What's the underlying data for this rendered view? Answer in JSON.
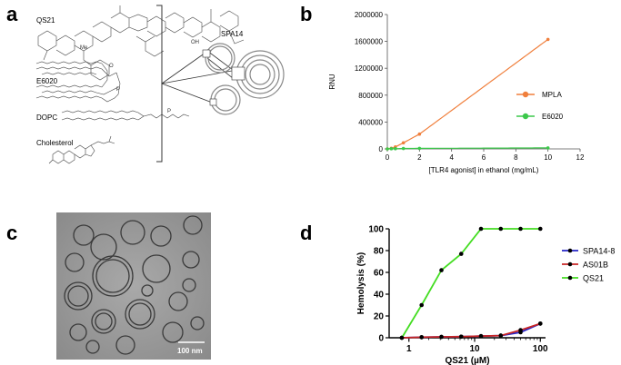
{
  "panels": {
    "a": {
      "letter": "a"
    },
    "b": {
      "letter": "b"
    },
    "c": {
      "letter": "c"
    },
    "d": {
      "letter": "d"
    }
  },
  "panel_a": {
    "labels": {
      "qs21": "QS21",
      "e6020": "E6020",
      "dopc": "DOPC",
      "cholesterol": "Cholesterol",
      "spa14": "SPA14"
    }
  },
  "panel_c": {
    "scale_bar_label": "100 nm"
  },
  "chart_data": [
    {
      "id": "b",
      "type": "line",
      "title": "",
      "xlabel": "[TLR4 agonist] in ethanol (mg/mL)",
      "ylabel": "RNU",
      "xlim": [
        0,
        12
      ],
      "ylim": [
        0,
        2000000
      ],
      "x_ticks": [
        0,
        2,
        4,
        6,
        8,
        10,
        12
      ],
      "y_ticks": [
        0,
        400000,
        800000,
        1200000,
        1600000,
        2000000
      ],
      "x_tick_labels": [
        "0",
        "2",
        "4",
        "6",
        "8",
        "10",
        "12"
      ],
      "y_tick_labels": [
        "0",
        "400000",
        "800000",
        "1200000",
        "1600000",
        "2000000"
      ],
      "legend_position": "center-right",
      "series": [
        {
          "name": "MPLA",
          "color": "#f07f3c",
          "x": [
            0,
            0.25,
            0.5,
            1,
            2,
            10
          ],
          "y": [
            0,
            10000,
            30000,
            90000,
            220000,
            1630000
          ]
        },
        {
          "name": "E6020",
          "color": "#3cc84b",
          "x": [
            0,
            0.25,
            0.5,
            1,
            2,
            10
          ],
          "y": [
            0,
            2000,
            4000,
            6000,
            8000,
            15000
          ]
        }
      ]
    },
    {
      "id": "d",
      "type": "line",
      "title": "",
      "xlabel": "QS21 (µM)",
      "ylabel": "Hemolysis (%)",
      "xscale": "log",
      "xlim": [
        0.5,
        120
      ],
      "ylim": [
        0,
        100
      ],
      "x_ticks": [
        1,
        10,
        100
      ],
      "y_ticks": [
        0,
        20,
        40,
        60,
        80,
        100
      ],
      "x_tick_labels": [
        "1",
        "10",
        "100"
      ],
      "y_tick_labels": [
        "0",
        "20",
        "40",
        "60",
        "80",
        "100"
      ],
      "legend_position": "right",
      "series": [
        {
          "name": "SPA14-8",
          "color": "#2626c8",
          "x": [
            0.78,
            1.56,
            3.125,
            6.25,
            12.5,
            25,
            50,
            100
          ],
          "y": [
            0,
            0.5,
            0.8,
            1,
            1.5,
            2,
            5,
            13
          ]
        },
        {
          "name": "AS01B",
          "color": "#c82626",
          "x": [
            0.78,
            1.56,
            3.125,
            6.25,
            12.5,
            25,
            50,
            100
          ],
          "y": [
            0,
            0.5,
            0.8,
            1,
            1.5,
            2,
            7,
            13
          ]
        },
        {
          "name": "QS21",
          "color": "#44dd22",
          "x": [
            0.78,
            1.56,
            3.125,
            6.25,
            12.5,
            25,
            50,
            100
          ],
          "y": [
            0,
            30,
            62,
            77,
            100,
            100,
            100,
            100
          ]
        }
      ]
    }
  ]
}
